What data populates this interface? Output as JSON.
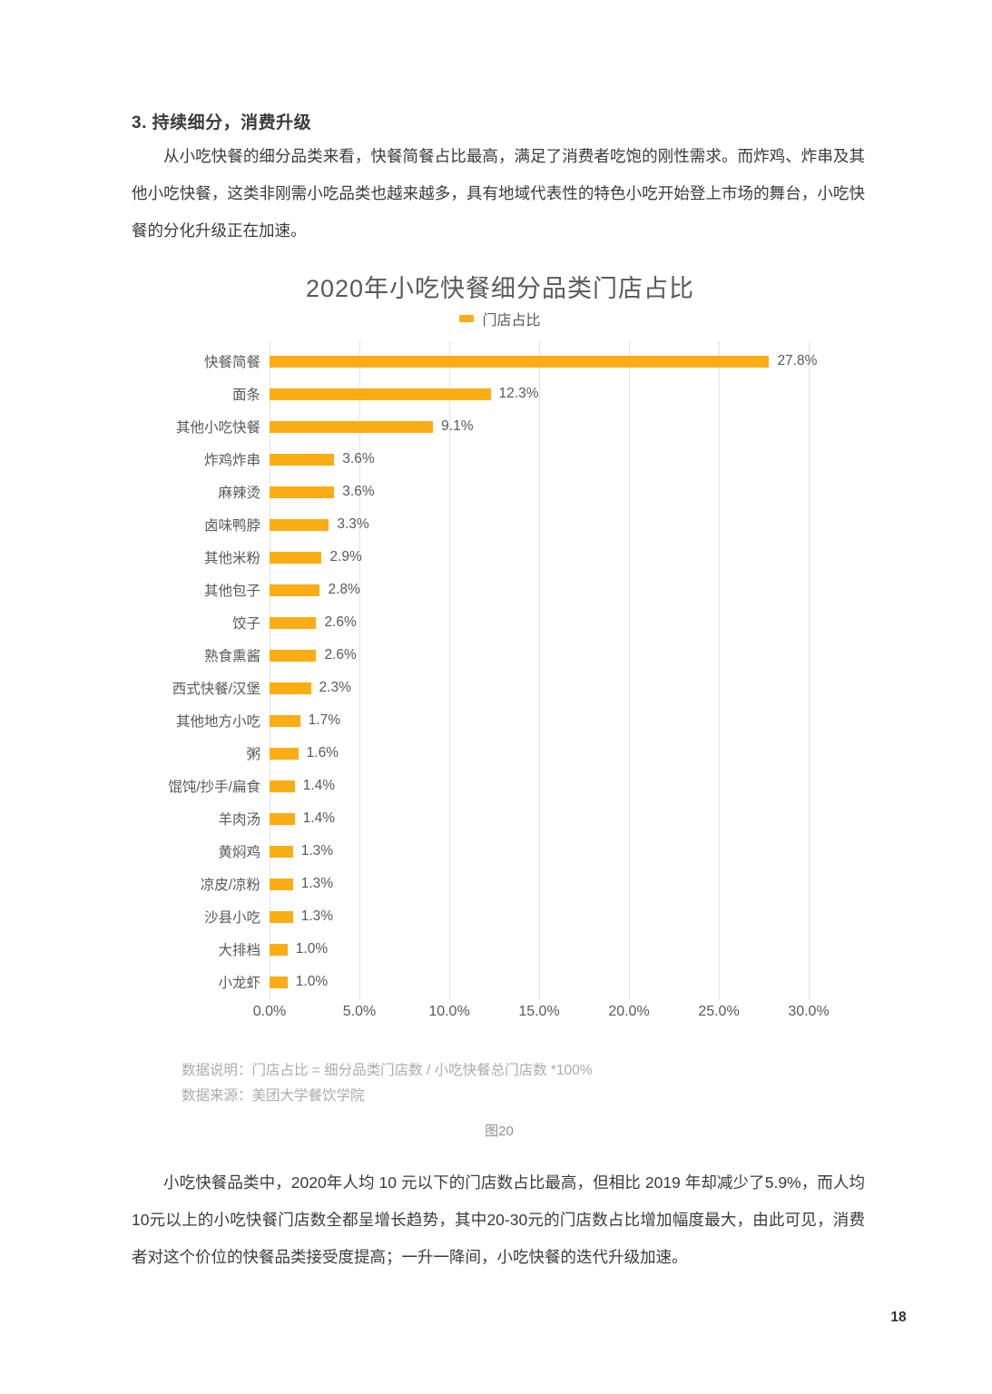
{
  "heading": "3. 持续细分，消费升级",
  "paragraph1": "从小吃快餐的细分品类来看，快餐简餐占比最高，满足了消费者吃饱的刚性需求。而炸鸡、炸串及其他小吃快餐，这类非刚需小吃品类也越来越多，具有地域代表性的特色小吃开始登上市场的舞台，小吃快餐的分化升级正在加速。",
  "paragraph2": "小吃快餐品类中，2020年人均 10 元以下的门店数占比最高，但相比 2019 年却减少了5.9%，而人均10元以上的小吃快餐门店数全都呈增长趋势，其中20-30元的门店数占比增加幅度最大，由此可见，消费者对这个价位的快餐品类接受度提高；一升一降间，小吃快餐的迭代升级加速。",
  "chart": {
    "title": "2020年小吃快餐细分品类门店占比",
    "legend_label": "门店占比",
    "bar_color": "#FAAD14",
    "gridline_color": "#e3e3e3",
    "note_line1": "数据说明：门店占比 = 细分品类门店数 / 小吃快餐总门店数 *100%",
    "note_line2": "数据来源：美团大学餐饮学院",
    "caption": "图20"
  },
  "chart_data": {
    "type": "bar",
    "orientation": "horizontal",
    "title": "2020年小吃快餐细分品类门店占比",
    "legend": [
      "门店占比"
    ],
    "legend_position": "top",
    "grid": true,
    "categories": [
      "快餐简餐",
      "面条",
      "其他小吃快餐",
      "炸鸡炸串",
      "麻辣烫",
      "卤味鸭脖",
      "其他米粉",
      "其他包子",
      "饺子",
      "熟食熏酱",
      "西式快餐/汉堡",
      "其他地方小吃",
      "粥",
      "馄饨/抄手/扁食",
      "羊肉汤",
      "黄焖鸡",
      "凉皮/凉粉",
      "沙县小吃",
      "大排档",
      "小龙虾"
    ],
    "values": [
      27.8,
      12.3,
      9.1,
      3.6,
      3.6,
      3.3,
      2.9,
      2.8,
      2.6,
      2.6,
      2.3,
      1.7,
      1.6,
      1.4,
      1.4,
      1.3,
      1.3,
      1.3,
      1.0,
      1.0
    ],
    "value_labels": [
      "27.8%",
      "12.3%",
      "9.1%",
      "3.6%",
      "3.6%",
      "3.3%",
      "2.9%",
      "2.8%",
      "2.6%",
      "2.6%",
      "2.3%",
      "1.7%",
      "1.6%",
      "1.4%",
      "1.4%",
      "1.3%",
      "1.3%",
      "1.3%",
      "1.0%",
      "1.0%"
    ],
    "x_ticks": [
      "0.0%",
      "5.0%",
      "10.0%",
      "15.0%",
      "20.0%",
      "25.0%",
      "30.0%"
    ],
    "x_tick_values": [
      0,
      5,
      10,
      15,
      20,
      25,
      30
    ],
    "xlim": [
      0,
      30
    ],
    "xlabel": "",
    "ylabel": ""
  },
  "footer": {
    "page_number": "18"
  }
}
